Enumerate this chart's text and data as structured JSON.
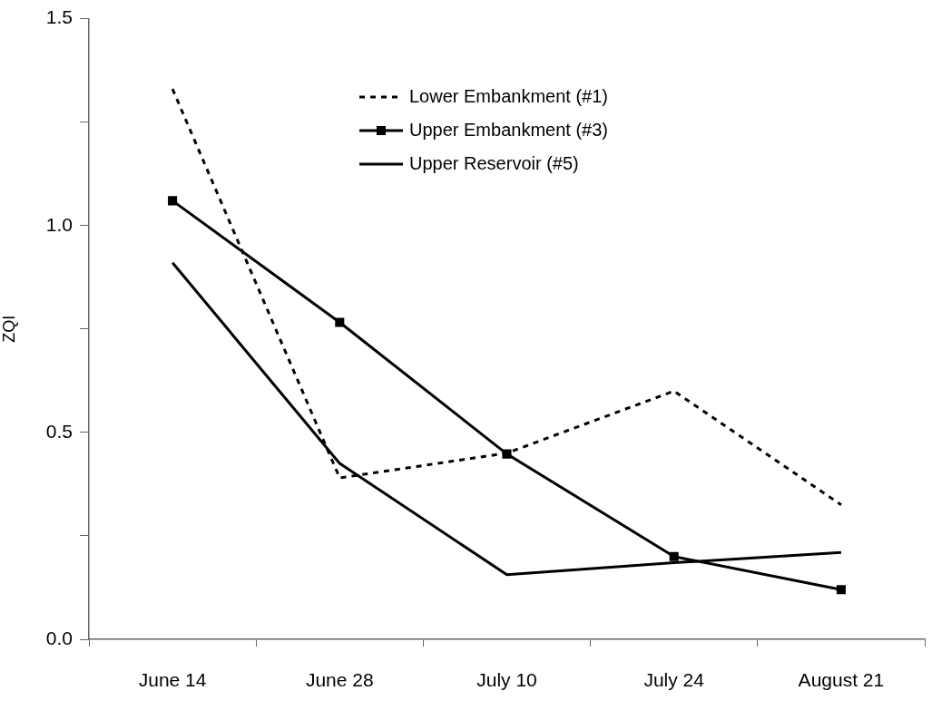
{
  "chart_data": {
    "type": "line",
    "ylabel": "ZQI",
    "categories": [
      "June 14",
      "June 28",
      "July 10",
      "July 24",
      "August 21"
    ],
    "series": [
      {
        "name": "Lower Embankment (#1)",
        "color": "#000000",
        "values": [
          1.33,
          0.39,
          0.45,
          0.6,
          0.325
        ],
        "line_style": "dotted",
        "marker": "none"
      },
      {
        "name": "Upper Embankment (#3)",
        "color": "#000000",
        "values": [
          1.06,
          0.766,
          0.448,
          0.2,
          0.12
        ],
        "line_style": "solid",
        "marker": "square"
      },
      {
        "name": "Upper Reservoir (#5)",
        "color": "#000000",
        "values": [
          0.91,
          0.425,
          0.156,
          0.185,
          0.21
        ],
        "line_style": "solid",
        "marker": "none"
      }
    ],
    "ylim": [
      0,
      1.5
    ],
    "yticks": [
      {
        "value": 0,
        "label": "0.0"
      },
      {
        "value": 0.25,
        "label": null
      },
      {
        "value": 0.5,
        "label": "0.5"
      },
      {
        "value": 0.75,
        "label": null
      },
      {
        "value": 1,
        "label": "1.0"
      },
      {
        "value": 1.25,
        "label": null
      },
      {
        "value": 1.5,
        "label": "1.5"
      }
    ],
    "grid": false,
    "legend": "top"
  }
}
